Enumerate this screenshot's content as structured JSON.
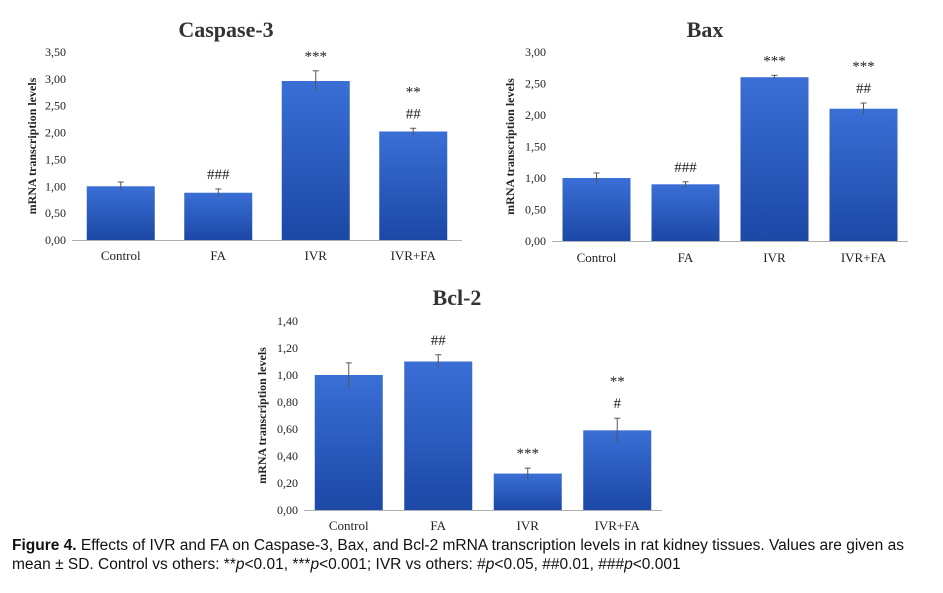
{
  "figure": {
    "caption_label": "Figure 4.",
    "caption_parts": [
      {
        "text": " Effects of IVR and FA on Caspase-3, Bax, and Bcl-2 mRNA transcription levels in rat kidney tissues. Values are given as mean ± SD. Control vs others: **",
        "italic": false
      },
      {
        "text": "p",
        "italic": true
      },
      {
        "text": "<0.01, ***",
        "italic": false
      },
      {
        "text": "p",
        "italic": true
      },
      {
        "text": "<0.001; IVR vs others: #",
        "italic": false
      },
      {
        "text": "p",
        "italic": true
      },
      {
        "text": "<0.05, ##0.01, ###",
        "italic": false
      },
      {
        "text": "p",
        "italic": true
      },
      {
        "text": "<0.001",
        "italic": false
      }
    ]
  },
  "colors": {
    "bar_top": "#3a6fd6",
    "bar_bottom": "#1c48a6",
    "axis": "#b0b0b0",
    "text": "#222222",
    "title": "#333333"
  },
  "chart_data": [
    {
      "type": "bar",
      "title": "Caspase-3",
      "ylabel": "mRNA transcription levels",
      "categories": [
        "Control",
        "FA",
        "IVR",
        "IVR+FA"
      ],
      "values": [
        1.0,
        0.88,
        2.96,
        2.02
      ],
      "errors": [
        0.08,
        0.07,
        0.19,
        0.06
      ],
      "annotations": [
        [
          ""
        ],
        [
          "###"
        ],
        [
          "***"
        ],
        [
          "**",
          "##"
        ]
      ],
      "ylim": [
        0,
        3.5
      ],
      "yticks": [
        "0,00",
        "0,50",
        "1,00",
        "1,50",
        "2,00",
        "2,50",
        "3,00",
        "3,50"
      ],
      "grid": false
    },
    {
      "type": "bar",
      "title": "Bax",
      "ylabel": "mRNA transcription levels",
      "categories": [
        "Control",
        "FA",
        "IVR",
        "IVR+FA"
      ],
      "values": [
        1.0,
        0.9,
        2.6,
        2.1
      ],
      "errors": [
        0.08,
        0.04,
        0.03,
        0.09
      ],
      "annotations": [
        [
          ""
        ],
        [
          "###"
        ],
        [
          "***"
        ],
        [
          "***",
          "##"
        ]
      ],
      "ylim": [
        0,
        3.0
      ],
      "yticks": [
        "0,00",
        "0,50",
        "1,00",
        "1,50",
        "2,00",
        "2,50",
        "3,00"
      ],
      "grid": false
    },
    {
      "type": "bar",
      "title": "Bcl-2",
      "ylabel": "mRNA transcription levels",
      "categories": [
        "Control",
        "FA",
        "IVR",
        "IVR+FA"
      ],
      "values": [
        1.0,
        1.1,
        0.27,
        0.59
      ],
      "errors": [
        0.09,
        0.05,
        0.04,
        0.09
      ],
      "annotations": [
        [
          ""
        ],
        [
          "##"
        ],
        [
          "***"
        ],
        [
          "**",
          "#"
        ]
      ],
      "ylim": [
        0,
        1.4
      ],
      "yticks": [
        "0,00",
        "0,20",
        "0,40",
        "0,60",
        "0,80",
        "1,00",
        "1,20",
        "1,40"
      ],
      "grid": false
    }
  ]
}
